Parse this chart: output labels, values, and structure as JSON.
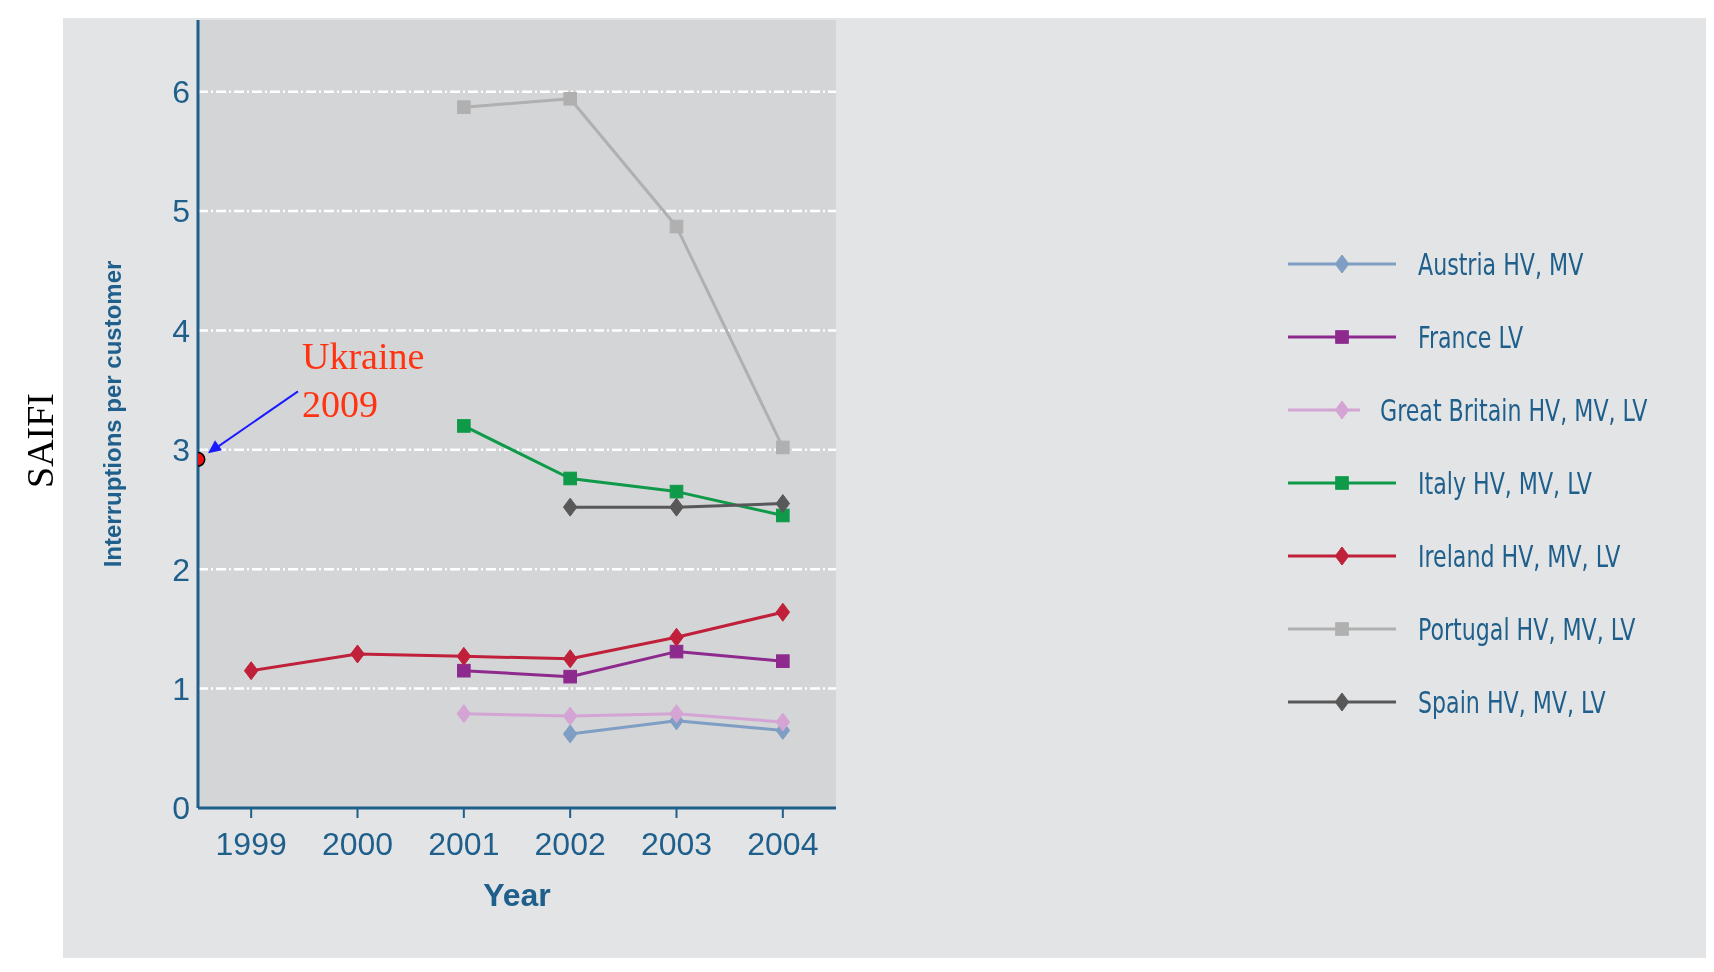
{
  "chart_data": {
    "type": "line",
    "xlabel": "Year",
    "ylabel": "Interruptions per customer",
    "x": [
      1999,
      2000,
      2001,
      2002,
      2003,
      2004
    ],
    "xlim": [
      1998.5,
      2004.5
    ],
    "xticks": [
      1999,
      2000,
      2001,
      2002,
      2003,
      2004
    ],
    "ylim": [
      0,
      6.6
    ],
    "yticks": [
      0,
      1,
      2,
      3,
      4,
      5,
      6
    ],
    "grid": "y",
    "legend": "right",
    "series": [
      {
        "name": "Austria HV, MV",
        "color": "#7f9ec4",
        "marker": "diamond",
        "values": [
          null,
          null,
          null,
          0.62,
          0.73,
          0.65
        ]
      },
      {
        "name": "France LV",
        "color": "#8e2a8e",
        "marker": "square",
        "values": [
          null,
          null,
          1.15,
          1.1,
          1.31,
          1.23
        ]
      },
      {
        "name": "Great Britain HV, MV, LV",
        "color": "#d4a5d4",
        "marker": "diamond",
        "values": [
          null,
          null,
          0.79,
          0.77,
          0.79,
          0.72
        ]
      },
      {
        "name": "Italy HV, MV, LV",
        "color": "#0f9a4a",
        "marker": "square",
        "values": [
          null,
          null,
          3.2,
          2.76,
          2.65,
          2.45
        ]
      },
      {
        "name": "Ireland HV, MV, LV",
        "color": "#c0203a",
        "marker": "diamond",
        "values": [
          1.15,
          1.29,
          1.27,
          1.25,
          1.43,
          1.64
        ]
      },
      {
        "name": "Portugal HV, MV, LV",
        "color": "#b0b0b0",
        "marker": "square",
        "values": [
          null,
          null,
          5.87,
          5.94,
          4.87,
          3.02
        ]
      },
      {
        "name": "Spain HV, MV, LV",
        "color": "#585858",
        "marker": "diamond",
        "values": [
          null,
          null,
          null,
          2.52,
          2.52,
          2.55
        ]
      },
      {
        "type": "scatter",
        "color": "#ee1111",
        "marker": "circle",
        "x": [
          1998.5
        ],
        "values": [
          2.92
        ]
      }
    ],
    "annotations": [
      {
        "text": "Ukraine 2009",
        "x": 1998.5,
        "y": 2.92
      },
      "SAIFI"
    ]
  }
}
